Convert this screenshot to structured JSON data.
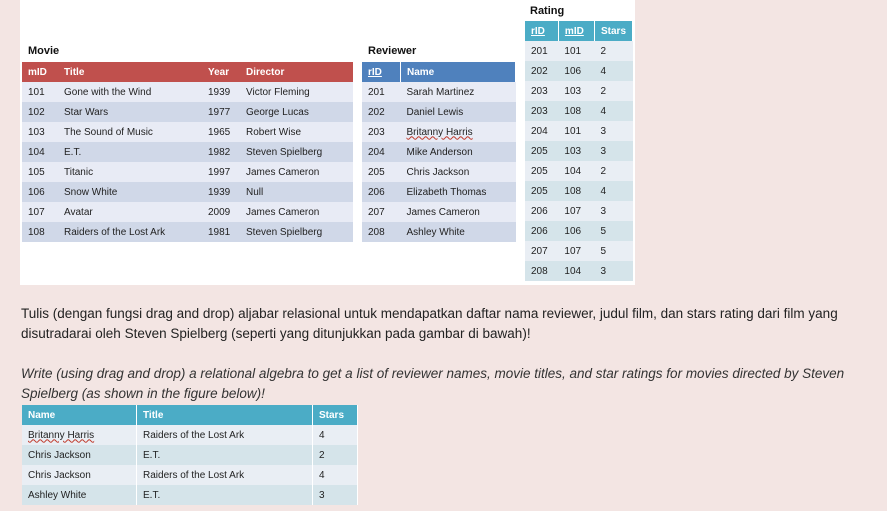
{
  "movie": {
    "title": "Movie",
    "headers": [
      "mID",
      "Title",
      "Year",
      "Director"
    ],
    "rows": [
      [
        "101",
        "Gone with the Wind",
        "1939",
        "Victor Fleming"
      ],
      [
        "102",
        "Star Wars",
        "1977",
        "George Lucas"
      ],
      [
        "103",
        "The Sound of Music",
        "1965",
        "Robert Wise"
      ],
      [
        "104",
        "E.T.",
        "1982",
        "Steven Spielberg"
      ],
      [
        "105",
        "Titanic",
        "1997",
        "James Cameron"
      ],
      [
        "106",
        "Snow White",
        "1939",
        "Null"
      ],
      [
        "107",
        "Avatar",
        "2009",
        "James Cameron"
      ],
      [
        "108",
        "Raiders of the Lost Ark",
        "1981",
        "Steven Spielberg"
      ]
    ]
  },
  "reviewer": {
    "title": "Reviewer",
    "headers": [
      "rID",
      "Name"
    ],
    "rows": [
      [
        "201",
        "Sarah Martinez"
      ],
      [
        "202",
        "Daniel Lewis"
      ],
      [
        "203",
        "Britanny Harris"
      ],
      [
        "204",
        "Mike Anderson"
      ],
      [
        "205",
        "Chris Jackson"
      ],
      [
        "206",
        "Elizabeth Thomas"
      ],
      [
        "207",
        "James Cameron"
      ],
      [
        "208",
        "Ashley White"
      ]
    ]
  },
  "rating": {
    "title": "Rating",
    "headers": [
      "rID",
      "mID",
      "Stars"
    ],
    "rows": [
      [
        "201",
        "101",
        "2"
      ],
      [
        "202",
        "106",
        "4"
      ],
      [
        "203",
        "103",
        "2"
      ],
      [
        "203",
        "108",
        "4"
      ],
      [
        "204",
        "101",
        "3"
      ],
      [
        "205",
        "103",
        "3"
      ],
      [
        "205",
        "104",
        "2"
      ],
      [
        "205",
        "108",
        "4"
      ],
      [
        "206",
        "107",
        "3"
      ],
      [
        "206",
        "106",
        "5"
      ],
      [
        "207",
        "107",
        "5"
      ],
      [
        "208",
        "104",
        "3"
      ]
    ]
  },
  "instructions": {
    "id": "Tulis (dengan fungsi drag and drop) aljabar relasional untuk mendapatkan daftar nama reviewer, judul film, dan stars rating dari film yang disutradarai oleh Steven Spielberg (seperti yang ditunjukkan pada gambar di bawah)!",
    "en": "Write (using drag and drop) a relational algebra to get a list of reviewer names, movie titles, and star ratings for movies directed by Steven Spielberg (as shown in the figure below)!"
  },
  "result": {
    "headers": [
      "Name",
      "Title",
      "Stars"
    ],
    "rows": [
      [
        "Britanny Harris",
        "Raiders of the Lost Ark",
        "4"
      ],
      [
        "Chris Jackson",
        "E.T.",
        "2"
      ],
      [
        "Chris Jackson",
        "Raiders of the Lost Ark",
        "4"
      ],
      [
        "Ashley White",
        "E.T.",
        "3"
      ]
    ]
  }
}
